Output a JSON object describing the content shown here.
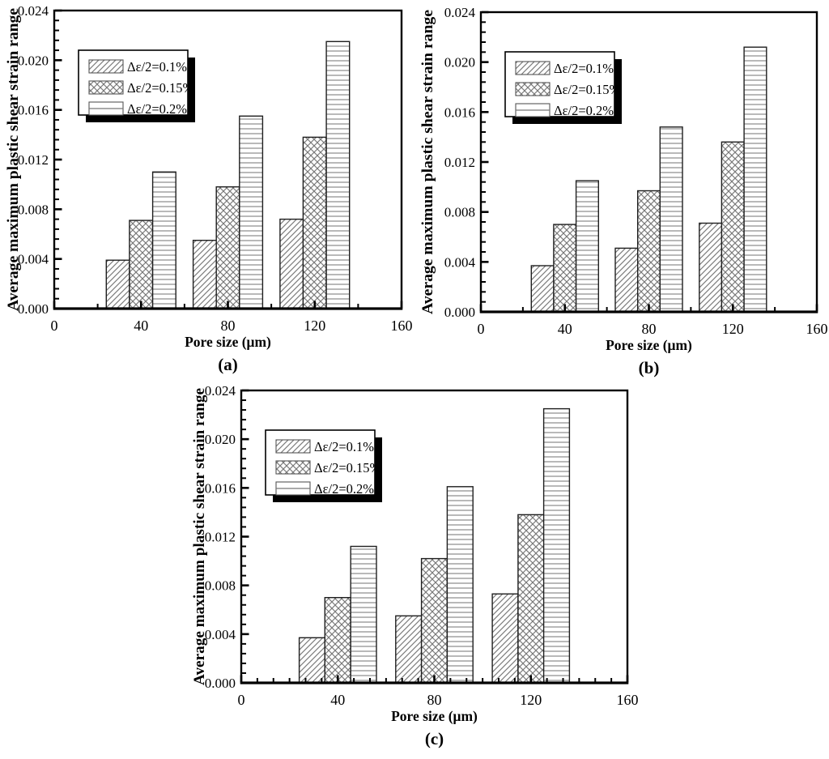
{
  "figure": {
    "background": "#ffffff",
    "text_color": "#000000",
    "axis_color": "#000000",
    "hatch_color": "#7a7a7a",
    "bar_outline_color": "#1f1f1f",
    "legend_shadow_color": "#000000"
  },
  "chart_data": [
    {
      "type": "bar",
      "panel_label": "(a)",
      "xlabel": "Pore size (μm)",
      "ylabel": "Average maximum plastic shear strain range",
      "xlim": [
        0,
        160
      ],
      "ylim": [
        0,
        0.024
      ],
      "x_ticks": [
        0,
        40,
        80,
        120,
        160
      ],
      "x_tick_labels": [
        "0",
        "40",
        "80",
        "120",
        "160"
      ],
      "x_major_step": 40,
      "x_minor_step": 20,
      "y_major_step": 0.004,
      "y_minor_step": 0.0008,
      "y_tick_labels": [
        "0.000",
        "0.004",
        "0.008",
        "0.012",
        "0.016",
        "0.020",
        "0.024"
      ],
      "grid": false,
      "legend_position": "upper-left-inside",
      "categories": [
        40,
        80,
        120
      ],
      "bar_group_span": 32,
      "series": [
        {
          "name": "Δε/2=0.1%",
          "hatch": "diagonal",
          "values": [
            0.0039,
            0.0055,
            0.0072
          ]
        },
        {
          "name": "Δε/2=0.15%",
          "hatch": "crosshatch",
          "values": [
            0.0071,
            0.0098,
            0.0138
          ]
        },
        {
          "name": "Δε/2=0.2%",
          "hatch": "hlines",
          "values": [
            0.011,
            0.0155,
            0.0215
          ]
        }
      ]
    },
    {
      "type": "bar",
      "panel_label": "(b)",
      "xlabel": "Pore size (μm)",
      "ylabel": "Average maximum plastic shear strain range",
      "xlim": [
        0,
        160
      ],
      "ylim": [
        0,
        0.024
      ],
      "x_ticks": [
        0,
        40,
        80,
        120,
        160
      ],
      "x_tick_labels": [
        "0",
        "40",
        "80",
        "120",
        "160"
      ],
      "x_major_step": 40,
      "x_minor_step": 20,
      "y_major_step": 0.004,
      "y_minor_step": 0.0008,
      "y_tick_labels": [
        "0.000",
        "0.004",
        "0.008",
        "0.012",
        "0.016",
        "0.020",
        "0.024"
      ],
      "grid": false,
      "legend_position": "upper-left-inside",
      "categories": [
        40,
        80,
        120
      ],
      "bar_group_span": 32,
      "series": [
        {
          "name": "Δε/2=0.1%",
          "hatch": "diagonal",
          "values": [
            0.0037,
            0.0051,
            0.0071
          ]
        },
        {
          "name": "Δε/2=0.15%",
          "hatch": "crosshatch",
          "values": [
            0.007,
            0.0097,
            0.0136
          ]
        },
        {
          "name": "Δε/2=0.2%",
          "hatch": "hlines",
          "values": [
            0.0105,
            0.0148,
            0.0212
          ]
        }
      ]
    },
    {
      "type": "bar",
      "panel_label": "(c)",
      "xlabel": "Pore size (μm)",
      "ylabel": "Average maximum plastic shear strain range",
      "xlim": [
        0,
        160
      ],
      "ylim": [
        0,
        0.024
      ],
      "x_ticks": [
        0,
        40,
        80,
        120,
        160
      ],
      "x_tick_labels": [
        "0",
        "40",
        "80",
        "120",
        "160"
      ],
      "x_major_step": 40,
      "x_minor_step": 6.6667,
      "y_major_step": 0.004,
      "y_minor_step": 0.0008,
      "y_tick_labels": [
        "0.000",
        "0.004",
        "0.008",
        "0.012",
        "0.016",
        "0.020",
        "0.024"
      ],
      "grid": false,
      "legend_position": "upper-left-inside",
      "categories": [
        40,
        80,
        120
      ],
      "bar_group_span": 32,
      "series": [
        {
          "name": "Δε/2=0.1%",
          "hatch": "diagonal",
          "values": [
            0.0037,
            0.0055,
            0.0073
          ]
        },
        {
          "name": "Δε/2=0.15%",
          "hatch": "crosshatch",
          "values": [
            0.007,
            0.0102,
            0.0138
          ]
        },
        {
          "name": "Δε/2=0.2%",
          "hatch": "hlines",
          "values": [
            0.0112,
            0.0161,
            0.0225
          ]
        }
      ]
    }
  ]
}
